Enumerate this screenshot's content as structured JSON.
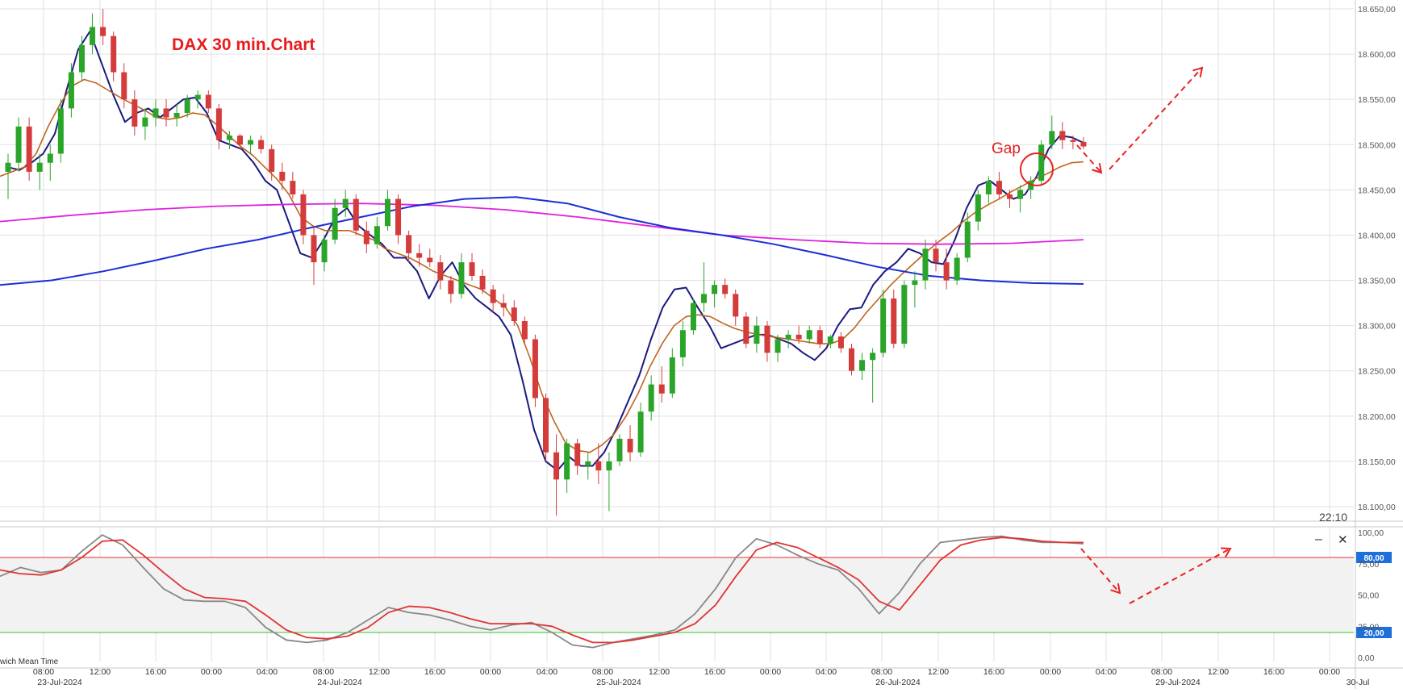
{
  "chart_data": [
    {
      "type": "candlestick",
      "title": "DAX 30 min.Chart",
      "price_axis": {
        "ylim": [
          18090,
          18655
        ],
        "ticks": [
          "18.650,00",
          "18.600,00",
          "18.550,00",
          "18.500,00",
          "18.450,00",
          "18.400,00",
          "18.350,00",
          "18.300,00",
          "18.250,00",
          "18.200,00",
          "18.150,00",
          "18.100,00"
        ],
        "tick_values": [
          18650,
          18600,
          18550,
          18500,
          18450,
          18400,
          18350,
          18300,
          18250,
          18200,
          18150,
          18100
        ]
      },
      "time_axis": {
        "time_labels": [
          "08:00",
          "12:00",
          "16:00",
          "00:00",
          "04:00",
          "08:00",
          "12:00",
          "16:00",
          "00:00",
          "04:00",
          "08:00",
          "12:00",
          "16:00",
          "00:00",
          "04:00",
          "08:00",
          "12:00",
          "16:00",
          "00:00",
          "04:00",
          "08:00",
          "12:00",
          "16:00",
          "00:00"
        ],
        "date_labels": [
          "23-Jul-2024",
          "24-Jul-2024",
          "25-Jul-2024",
          "26-Jul-2024",
          "29-Jul-2024",
          "30-Jul"
        ]
      },
      "clock": "22:10",
      "annotations": {
        "gap_label": "Gap"
      },
      "candles": [
        [
          18470,
          18490,
          18440,
          18480
        ],
        [
          18480,
          18530,
          18470,
          18520
        ],
        [
          18520,
          18530,
          18460,
          18470
        ],
        [
          18470,
          18490,
          18450,
          18480
        ],
        [
          18480,
          18500,
          18460,
          18490
        ],
        [
          18490,
          18550,
          18480,
          18540
        ],
        [
          18540,
          18590,
          18530,
          18580
        ],
        [
          18580,
          18620,
          18570,
          18610
        ],
        [
          18610,
          18645,
          18600,
          18630
        ],
        [
          18630,
          18650,
          18610,
          18620
        ],
        [
          18620,
          18625,
          18570,
          18580
        ],
        [
          18580,
          18590,
          18540,
          18550
        ],
        [
          18550,
          18560,
          18510,
          18520
        ],
        [
          18520,
          18540,
          18505,
          18530
        ],
        [
          18530,
          18550,
          18520,
          18540
        ],
        [
          18540,
          18550,
          18520,
          18530
        ],
        [
          18530,
          18545,
          18520,
          18535
        ],
        [
          18535,
          18555,
          18530,
          18550
        ],
        [
          18550,
          18560,
          18540,
          18555
        ],
        [
          18555,
          18560,
          18535,
          18540
        ],
        [
          18540,
          18545,
          18495,
          18505
        ],
        [
          18505,
          18515,
          18495,
          18510
        ],
        [
          18510,
          18512,
          18495,
          18500
        ],
        [
          18500,
          18510,
          18490,
          18505
        ],
        [
          18505,
          18510,
          18490,
          18495
        ],
        [
          18495,
          18500,
          18460,
          18470
        ],
        [
          18470,
          18480,
          18450,
          18460
        ],
        [
          18460,
          18470,
          18440,
          18445
        ],
        [
          18445,
          18450,
          18390,
          18400
        ],
        [
          18400,
          18410,
          18345,
          18370
        ],
        [
          18370,
          18400,
          18360,
          18395
        ],
        [
          18395,
          18440,
          18390,
          18430
        ],
        [
          18430,
          18450,
          18420,
          18440
        ],
        [
          18440,
          18445,
          18400,
          18405
        ],
        [
          18405,
          18415,
          18380,
          18390
        ],
        [
          18390,
          18420,
          18385,
          18410
        ],
        [
          18410,
          18450,
          18405,
          18440
        ],
        [
          18440,
          18445,
          18390,
          18400
        ],
        [
          18400,
          18405,
          18370,
          18380
        ],
        [
          18380,
          18390,
          18365,
          18375
        ],
        [
          18375,
          18385,
          18365,
          18370
        ],
        [
          18370,
          18378,
          18340,
          18350
        ],
        [
          18350,
          18355,
          18325,
          18335
        ],
        [
          18335,
          18380,
          18330,
          18370
        ],
        [
          18370,
          18380,
          18350,
          18355
        ],
        [
          18355,
          18362,
          18335,
          18340
        ],
        [
          18340,
          18345,
          18315,
          18325
        ],
        [
          18325,
          18335,
          18310,
          18320
        ],
        [
          18320,
          18328,
          18300,
          18305
        ],
        [
          18305,
          18310,
          18280,
          18285
        ],
        [
          18285,
          18290,
          18210,
          18220
        ],
        [
          18220,
          18225,
          18150,
          18160
        ],
        [
          18160,
          18180,
          18090,
          18130
        ],
        [
          18130,
          18175,
          18115,
          18170
        ],
        [
          18170,
          18175,
          18135,
          18145
        ],
        [
          18145,
          18160,
          18130,
          18150
        ],
        [
          18150,
          18170,
          18125,
          18140
        ],
        [
          18140,
          18160,
          18095,
          18150
        ],
        [
          18150,
          18180,
          18145,
          18175
        ],
        [
          18175,
          18190,
          18150,
          18160
        ],
        [
          18160,
          18215,
          18155,
          18205
        ],
        [
          18205,
          18245,
          18195,
          18235
        ],
        [
          18235,
          18255,
          18215,
          18225
        ],
        [
          18225,
          18275,
          18220,
          18265
        ],
        [
          18265,
          18305,
          18255,
          18295
        ],
        [
          18295,
          18330,
          18290,
          18325
        ],
        [
          18325,
          18370,
          18315,
          18335
        ],
        [
          18335,
          18350,
          18320,
          18345
        ],
        [
          18345,
          18352,
          18330,
          18335
        ],
        [
          18335,
          18340,
          18300,
          18310
        ],
        [
          18310,
          18315,
          18275,
          18280
        ],
        [
          18280,
          18310,
          18270,
          18300
        ],
        [
          18300,
          18305,
          18260,
          18270
        ],
        [
          18270,
          18290,
          18260,
          18285
        ],
        [
          18285,
          18295,
          18275,
          18290
        ],
        [
          18290,
          18300,
          18280,
          18285
        ],
        [
          18285,
          18300,
          18280,
          18295
        ],
        [
          18295,
          18300,
          18275,
          18280
        ],
        [
          18280,
          18290,
          18275,
          18288
        ],
        [
          18288,
          18293,
          18270,
          18275
        ],
        [
          18275,
          18280,
          18245,
          18250
        ],
        [
          18250,
          18270,
          18240,
          18262
        ],
        [
          18262,
          18275,
          18215,
          18270
        ],
        [
          18270,
          18340,
          18265,
          18330
        ],
        [
          18330,
          18340,
          18275,
          18280
        ],
        [
          18280,
          18350,
          18275,
          18345
        ],
        [
          18345,
          18360,
          18320,
          18350
        ],
        [
          18350,
          18395,
          18340,
          18385
        ],
        [
          18385,
          18395,
          18360,
          18370
        ],
        [
          18370,
          18385,
          18340,
          18350
        ],
        [
          18350,
          18380,
          18345,
          18375
        ],
        [
          18375,
          18425,
          18370,
          18415
        ],
        [
          18415,
          18450,
          18405,
          18445
        ],
        [
          18445,
          18465,
          18435,
          18460
        ],
        [
          18460,
          18470,
          18440,
          18445
        ],
        [
          18445,
          18450,
          18430,
          18440
        ],
        [
          18440,
          18455,
          18425,
          18450
        ],
        [
          18450,
          18465,
          18440,
          18460
        ],
        [
          18460,
          18505,
          18455,
          18500
        ],
        [
          18500,
          18532,
          18495,
          18515
        ],
        [
          18515,
          18525,
          18495,
          18505
        ],
        [
          18505,
          18510,
          18495,
          18503
        ],
        [
          18503,
          18508,
          18495,
          18498
        ]
      ],
      "series": [
        {
          "color": "#1a1a80",
          "values": [
            18475,
            18472,
            18480,
            18490,
            18512,
            18560,
            18605,
            18625,
            18590,
            18555,
            18525,
            18535,
            18540,
            18530,
            18540,
            18550,
            18552,
            18535,
            18505,
            18500,
            18495,
            18480,
            18460,
            18450,
            18415,
            18380,
            18375,
            18395,
            18420,
            18430,
            18410,
            18400,
            18390,
            18375,
            18375,
            18360,
            18330,
            18355,
            18370,
            18345,
            18330,
            18320,
            18310,
            18290,
            18240,
            18185,
            18150,
            18140,
            18155,
            18145,
            18145,
            18160,
            18185,
            18215,
            18245,
            18285,
            18320,
            18340,
            18342,
            18320,
            18300,
            18275,
            18280,
            18285,
            18290,
            18290,
            18285,
            18280,
            18270,
            18262,
            18275,
            18300,
            18318,
            18320,
            18345,
            18360,
            18370,
            18385,
            18380,
            18370,
            18368,
            18395,
            18430,
            18455,
            18460,
            18450,
            18440,
            18445,
            18465,
            18495,
            18510,
            18508,
            18502
          ]
        },
        {
          "color": "#c0641e",
          "values": [
            18465,
            18470,
            18475,
            18490,
            18520,
            18545,
            18565,
            18572,
            18568,
            18560,
            18552,
            18545,
            18538,
            18530,
            18528,
            18530,
            18535,
            18533,
            18522,
            18510,
            18498,
            18488,
            18475,
            18462,
            18445,
            18420,
            18410,
            18405,
            18405,
            18405,
            18400,
            18395,
            18385,
            18380,
            18375,
            18368,
            18360,
            18355,
            18350,
            18345,
            18340,
            18330,
            18320,
            18300,
            18265,
            18225,
            18195,
            18170,
            18162,
            18160,
            18168,
            18180,
            18200,
            18225,
            18255,
            18280,
            18300,
            18310,
            18312,
            18310,
            18303,
            18297,
            18293,
            18290,
            18288,
            18286,
            18284,
            18282,
            18280,
            18280,
            18285,
            18298,
            18315,
            18330,
            18345,
            18358,
            18370,
            18382,
            18393,
            18403,
            18415,
            18425,
            18433,
            18440,
            18448,
            18455,
            18462,
            18468,
            18475,
            18480,
            18481
          ]
        },
        {
          "color": "#e020e0",
          "values": [
            18415,
            18422,
            18428,
            18432,
            18434,
            18435,
            18433,
            18428,
            18420,
            18410,
            18400,
            18395,
            18391,
            18390,
            18391,
            18395
          ]
        },
        {
          "color": "#1a2ed6",
          "values": [
            18345,
            18350,
            18360,
            18372,
            18385,
            18395,
            18408,
            18420,
            18432,
            18440,
            18442,
            18435,
            18420,
            18408,
            18400,
            18390,
            18378,
            18365,
            18355,
            18350,
            18347,
            18346
          ]
        }
      ],
      "flags": {
        "candle_up_color": "#2aa52a",
        "candle_down_color": "#d43b3b",
        "grid": true
      }
    },
    {
      "type": "line",
      "ylim": [
        0,
        100
      ],
      "ticks": [
        "100,00",
        "75,00",
        "50,00",
        "25,00",
        "0,00"
      ],
      "tick_values": [
        100,
        75,
        50,
        25,
        0
      ],
      "levels": [
        {
          "value": 80,
          "label": "80,00",
          "color": "#e03030"
        },
        {
          "value": 20,
          "label": "20,00",
          "color": "#2ec42e"
        }
      ],
      "series": [
        {
          "color": "#888888",
          "values": [
            65,
            72,
            68,
            70,
            85,
            98,
            90,
            72,
            55,
            46,
            45,
            45,
            40,
            24,
            14,
            12,
            14,
            20,
            30,
            40,
            36,
            34,
            30,
            25,
            22,
            26,
            28,
            20,
            10,
            8,
            12,
            15,
            18,
            22,
            35,
            55,
            80,
            95,
            90,
            82,
            75,
            70,
            55,
            35,
            52,
            75,
            92,
            94,
            96,
            97,
            94,
            92,
            92,
            91
          ]
        },
        {
          "color": "#e03333",
          "values": [
            70,
            67,
            66,
            70,
            80,
            93,
            94,
            82,
            68,
            55,
            48,
            47,
            45,
            34,
            22,
            16,
            15,
            17,
            24,
            36,
            41,
            40,
            36,
            31,
            27,
            27,
            27,
            25,
            18,
            12,
            12,
            14,
            17,
            20,
            27,
            42,
            65,
            86,
            92,
            88,
            80,
            72,
            62,
            45,
            38,
            58,
            78,
            90,
            94,
            96,
            95,
            93,
            92,
            92
          ]
        }
      ],
      "grid": true
    }
  ],
  "colors": {
    "arrow": "#e82222",
    "title": "#e81c1c",
    "axis_text": "#555555",
    "grid": "#dcdcdc"
  },
  "controls": {
    "minimize_glyph": "–",
    "close_glyph": "✕"
  },
  "footer": {
    "timezone_fragment": "wich Mean Time"
  }
}
